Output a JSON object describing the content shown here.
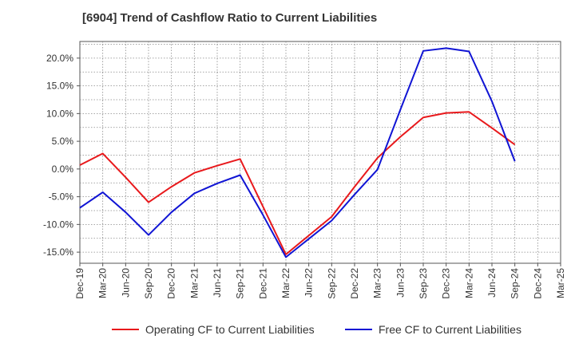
{
  "chart_data": {
    "type": "line",
    "title": "[6904]  Trend of Cashflow Ratio to Current Liabilities",
    "xlabel": "",
    "ylabel": "",
    "categories": [
      "Dec-19",
      "Mar-20",
      "Jun-20",
      "Sep-20",
      "Dec-20",
      "Mar-21",
      "Jun-21",
      "Sep-21",
      "Dec-21",
      "Mar-22",
      "Jun-22",
      "Sep-22",
      "Dec-22",
      "Mar-23",
      "Jun-23",
      "Sep-23",
      "Dec-23",
      "Mar-24",
      "Jun-24",
      "Sep-24",
      "Dec-24",
      "Mar-25"
    ],
    "y_ticks": [
      20,
      15,
      10,
      5,
      0,
      -5,
      -10,
      -15
    ],
    "y_tick_labels": [
      "20.0%",
      "15.0%",
      "10.0%",
      "5.0%",
      "0.0%",
      "-5.0%",
      "-10.0%",
      "-15.0%"
    ],
    "ylim": [
      -17,
      23
    ],
    "grid": true,
    "legend_position": "bottom",
    "series": [
      {
        "name": "Operating CF to Current Liabilities",
        "color": "#e8191c",
        "values": [
          0.7,
          2.8,
          -1.5,
          -6.0,
          -3.2,
          -0.7,
          0.6,
          1.8,
          -6.8,
          -15.4,
          -12.0,
          -8.6,
          -3.2,
          2.0,
          5.8,
          9.3,
          10.1,
          10.3,
          7.4,
          4.4,
          null,
          null
        ]
      },
      {
        "name": "Free CF to Current Liabilities",
        "color": "#1014d4",
        "values": [
          -7.0,
          -4.2,
          -7.8,
          -11.9,
          -7.8,
          -4.4,
          -2.6,
          -1.1,
          -8.3,
          -15.9,
          -12.6,
          -9.3,
          -4.6,
          -0.1,
          10.7,
          21.3,
          21.8,
          21.2,
          12.2,
          1.4,
          null,
          null
        ]
      }
    ]
  }
}
